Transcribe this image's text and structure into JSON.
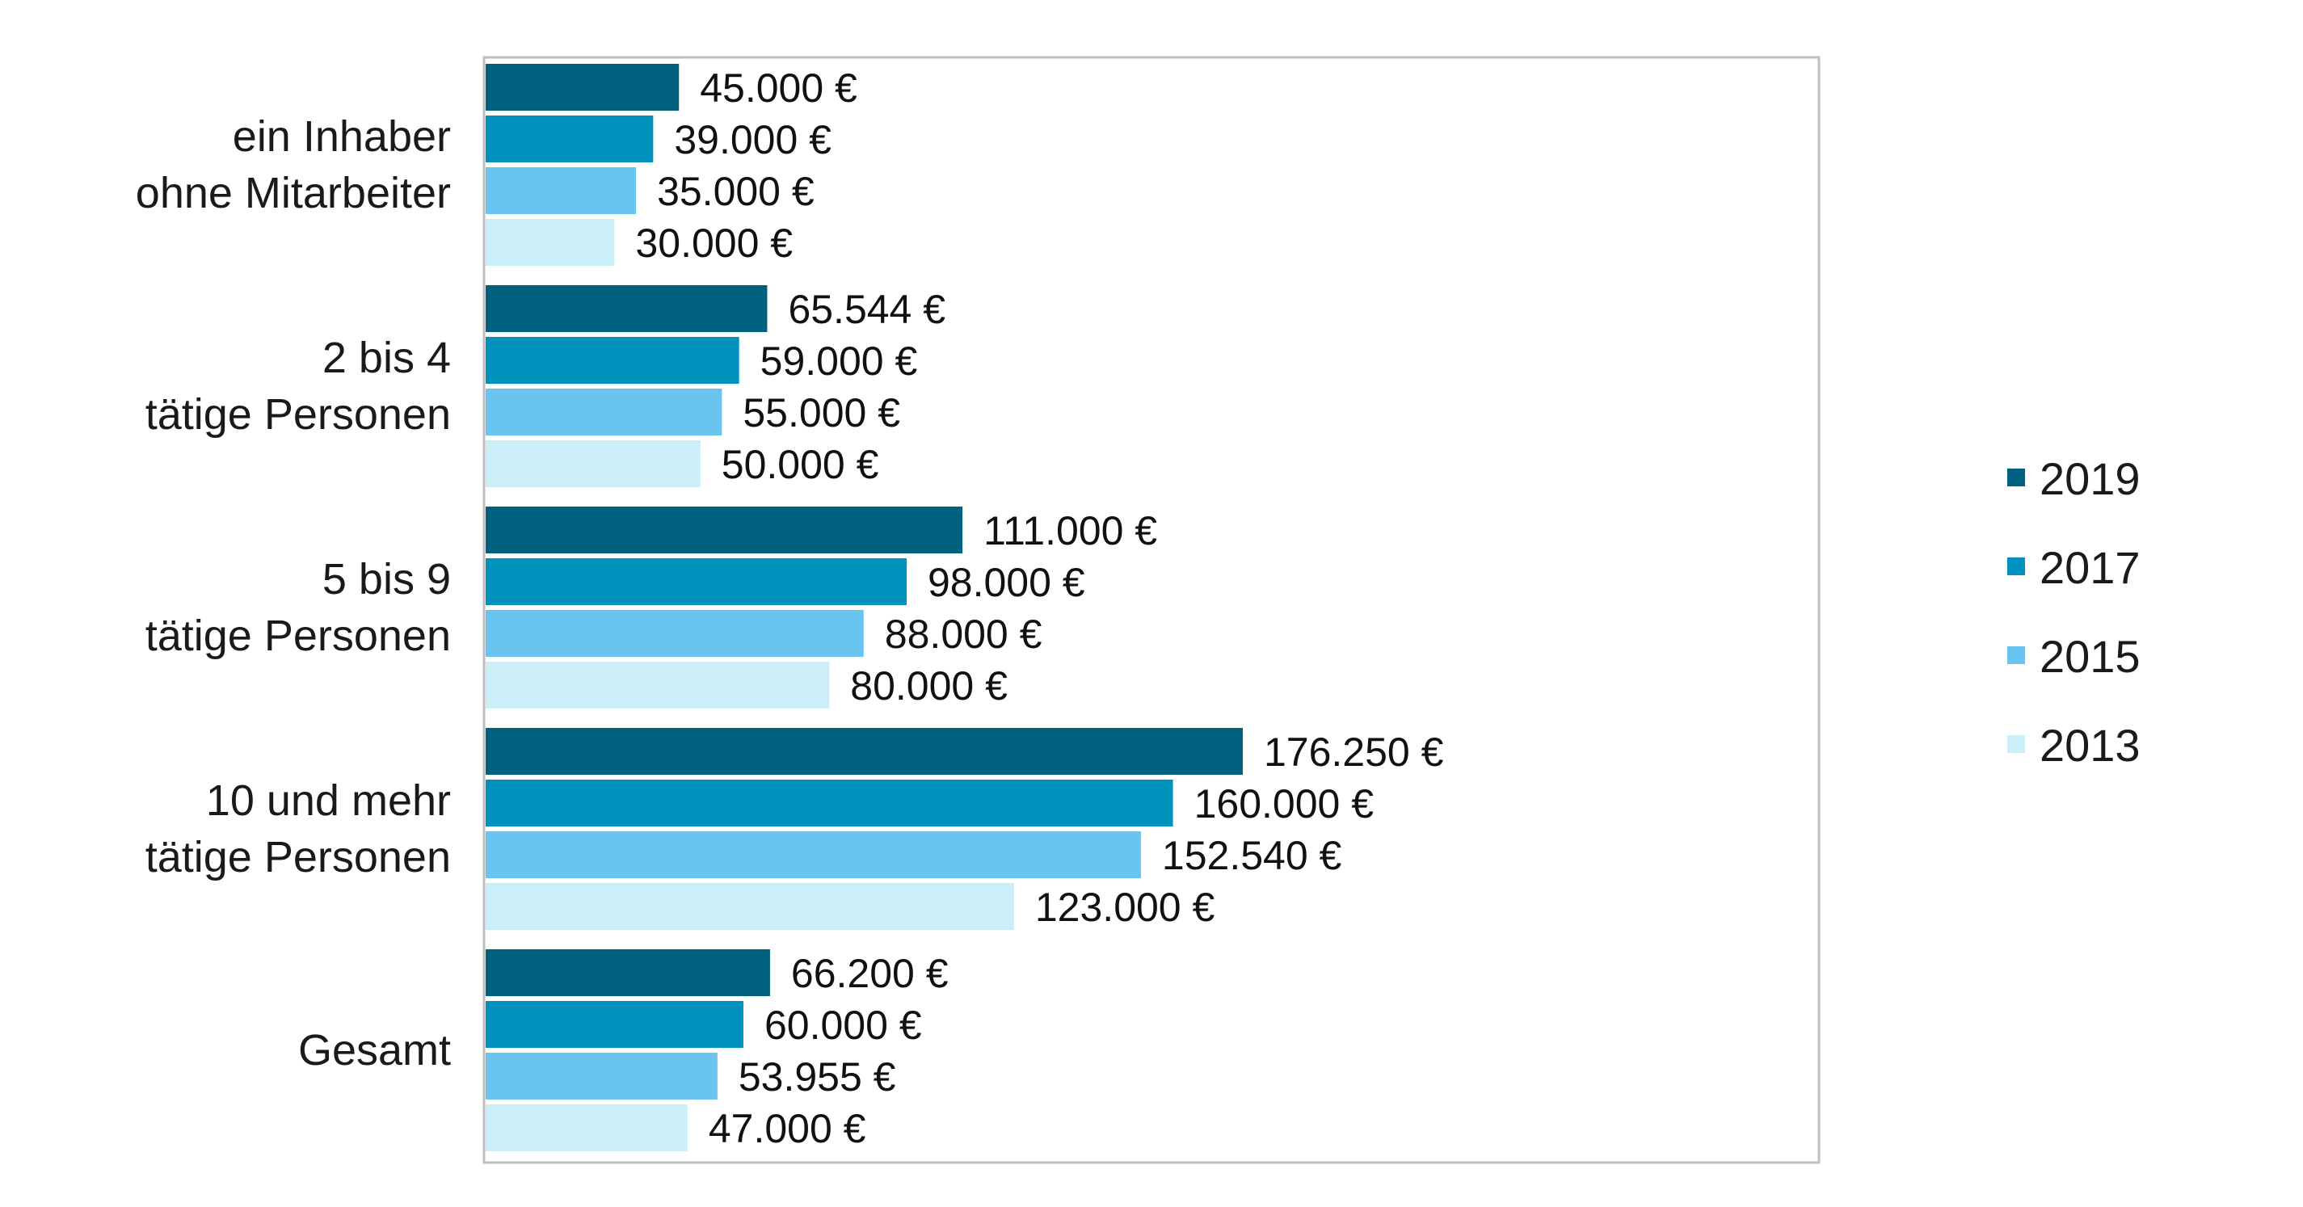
{
  "chart_data": {
    "type": "bar",
    "orientation": "horizontal",
    "title": "",
    "xlabel": "",
    "ylabel": "",
    "xlim": [
      0,
      310000
    ],
    "grid": false,
    "legend_position": "right",
    "value_suffix": "€",
    "categories": [
      [
        "ein Inhaber",
        "ohne Mitarbeiter"
      ],
      [
        "2 bis 4",
        "tätige Personen"
      ],
      [
        "5 bis 9",
        "tätige Personen"
      ],
      [
        "10 und mehr",
        "tätige Personen"
      ],
      [
        "Gesamt"
      ]
    ],
    "series": [
      {
        "name": "2019",
        "color": "#00617F",
        "values": [
          45000,
          65544,
          111000,
          176250,
          66200
        ],
        "labels": [
          "45.000 €",
          "65.544 €",
          "111.000 €",
          "176.250 €",
          "66.200 €"
        ]
      },
      {
        "name": "2017",
        "color": "#0092BC",
        "values": [
          39000,
          59000,
          98000,
          160000,
          60000
        ],
        "labels": [
          "39.000 €",
          "59.000 €",
          "98.000 €",
          "160.000 €",
          "60.000 €"
        ]
      },
      {
        "name": "2015",
        "color": "#69C5F0",
        "values": [
          35000,
          55000,
          88000,
          152540,
          53955
        ],
        "labels": [
          "35.000 €",
          "55.000 €",
          "88.000 €",
          "152.540 €",
          "53.955 €"
        ]
      },
      {
        "name": "2013",
        "color": "#CBEFF8",
        "values": [
          30000,
          50000,
          80000,
          123000,
          47000
        ],
        "labels": [
          "30.000 €",
          "50.000 €",
          "80.000 €",
          "123.000 €",
          "47.000 €"
        ]
      }
    ]
  }
}
